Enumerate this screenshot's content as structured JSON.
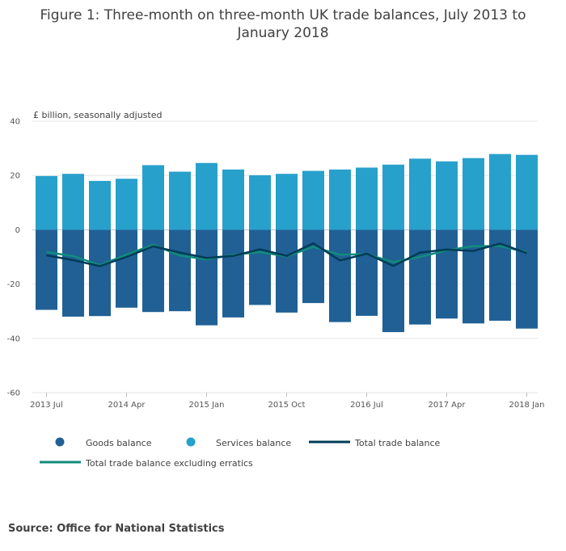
{
  "title": "Figure 1: Three-month on three-month UK trade balances, July 2013 to January 2018",
  "source": "Source: Office for National Statistics",
  "colors": {
    "goods": "#206095",
    "services": "#27a0cc",
    "total": "#003c57",
    "excl_erratics": "#118c7b",
    "grid": "#e6e6e6",
    "zero": "#bfbfbf"
  },
  "chart_data": {
    "type": "bar",
    "title": "Figure 1: Three-month on three-month UK trade balances, July 2013 to January 2018",
    "ylabel": "£ billion, seasonally adjusted",
    "ylim": [
      -60,
      40
    ],
    "yticks": [
      40,
      20,
      0,
      -20,
      -40,
      -60
    ],
    "xticks": [
      "2013 Jul",
      "2014 Apr",
      "2015 Jan",
      "2015 Oct",
      "2016 Jul",
      "2017 Apr",
      "2018 Jan"
    ],
    "categories": [
      "2013 Jul",
      "2013 Oct",
      "2014 Jan",
      "2014 Apr",
      "2014 Jul",
      "2014 Oct",
      "2015 Jan",
      "2015 Apr",
      "2015 Jul",
      "2015 Oct",
      "2016 Jan",
      "2016 Apr",
      "2016 Jul",
      "2016 Oct",
      "2017 Jan",
      "2017 Apr",
      "2017 Jul",
      "2017 Oct",
      "2018 Jan"
    ],
    "series": [
      {
        "name": "Goods balance",
        "kind": "bar",
        "values": [
          -29.5,
          -32,
          -31.8,
          -28.7,
          -30.3,
          -30,
          -35.2,
          -32.3,
          -27.7,
          -30.5,
          -27,
          -34,
          -31.7,
          -37.7,
          -34.9,
          -32.7,
          -34.5,
          -33.5,
          -36.4
        ]
      },
      {
        "name": "Services balance",
        "kind": "bar",
        "values": [
          19.8,
          20.6,
          18,
          18.8,
          23.8,
          21.4,
          24.6,
          22.2,
          20.1,
          20.6,
          21.7,
          22.2,
          22.9,
          24,
          26.2,
          25.2,
          26.4,
          27.9,
          27.6
        ]
      },
      {
        "name": "Total trade balance",
        "kind": "line",
        "values": [
          -9.4,
          -11.2,
          -13.4,
          -10,
          -6.1,
          -8.4,
          -10.4,
          -9.6,
          -7.2,
          -9.6,
          -5,
          -11.3,
          -8.8,
          -13.3,
          -8.4,
          -7.3,
          -7.8,
          -5.1,
          -8.6
        ]
      },
      {
        "name": "Total trade balance excluding erratics",
        "kind": "line",
        "values": [
          -8.2,
          -9.7,
          -13,
          -9.2,
          -5.5,
          -9.5,
          -10.9,
          -9.2,
          -8.2,
          -9.8,
          -6.3,
          -9.2,
          -9,
          -11.9,
          -10,
          -7.6,
          -6,
          -6,
          -8.2
        ]
      }
    ]
  },
  "legend": [
    {
      "label": "Goods balance",
      "marker": "dot",
      "color": "#206095"
    },
    {
      "label": "Services balance",
      "marker": "dot",
      "color": "#27a0cc"
    },
    {
      "label": "Total trade balance",
      "marker": "line",
      "color": "#003c57"
    },
    {
      "label": "Total trade balance excluding erratics",
      "marker": "line",
      "color": "#118c7b"
    }
  ]
}
